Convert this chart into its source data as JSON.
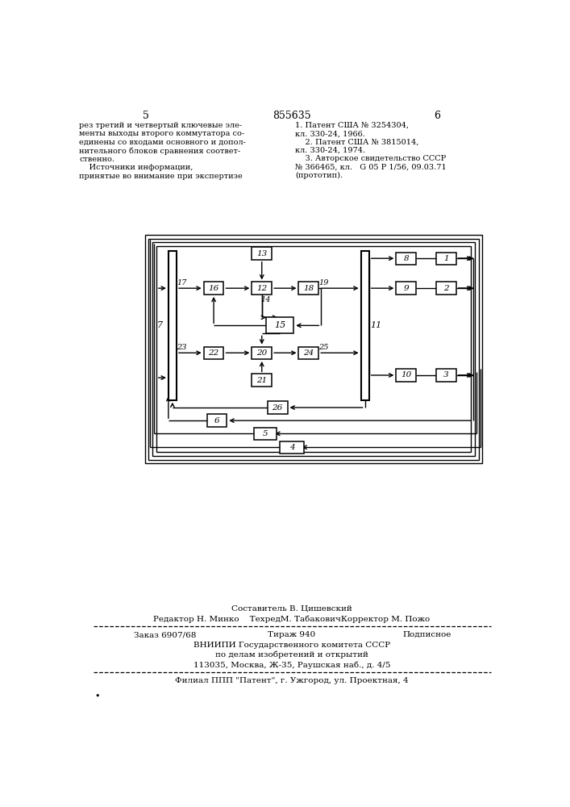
{
  "page_number_left": "5",
  "page_number_center": "855635",
  "page_number_right": "6",
  "text_left": "рез третий и четвертый ключевые эле-\nменты выходы второго коммутатора со-\nединены со входами основного и допол-\nнительного блоков сравнения соответ-\nственно.\n    Источники информации,\nпринятые во внимание при экспертизе",
  "text_right": "1. Патент США № 3254304,\nкл. 330-24, 1966.\n    2. Патент США № 3815014,\nкл. 330-24, 1974.\n    3. Авторское свидетельство СССР\n№ 366465, кл.   G 05 Р 1/56, 09.03.71\n(прототип).",
  "footer_composer": "Составитель В. Цишевский",
  "footer_editor_row": "Редактор Н. Минко    ТехредМ. ТабаковичКорректор М. Пожо",
  "footer_order": "Заказ 6907/68",
  "footer_tirazh": "Тираж 940",
  "footer_podp": "Подписное",
  "footer_vniip1": "ВНИИПИ Государственного комитета СССР",
  "footer_vniip2": "по делам изобретений и открытий",
  "footer_addr": "113035, Москва, Ж-35, Раушская наб., д. 4/5",
  "footer_filial": "Филиал ППП \"Патент\", г. Ужгород, ул. Проектная, 4",
  "bg_color": "#ffffff",
  "line_color": "#000000"
}
